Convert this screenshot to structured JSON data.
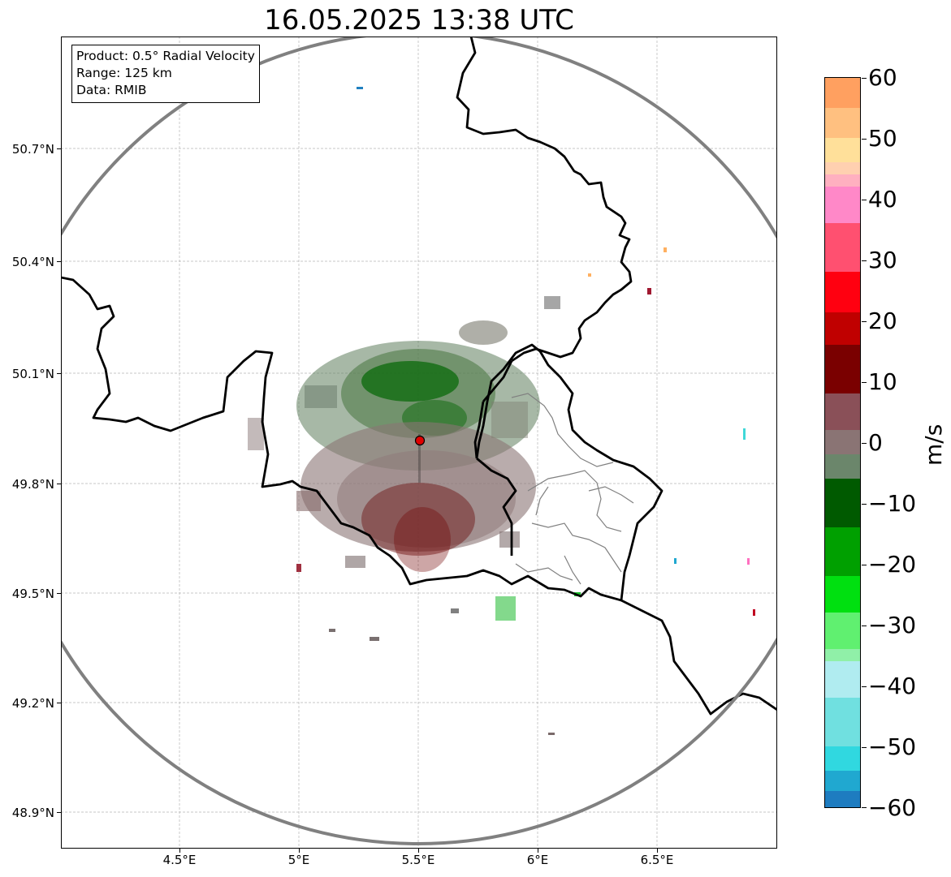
{
  "title": "16.05.2025 13:38 UTC",
  "info": {
    "product": "Product: 0.5° Radial Velocity",
    "range": "Range: 125 km",
    "source": "Data: RMIB"
  },
  "axes": {
    "lon_ticks": [
      {
        "value": 4.5,
        "label": "4.5°E"
      },
      {
        "value": 5.0,
        "label": "5°E"
      },
      {
        "value": 5.5,
        "label": "5.5°E"
      },
      {
        "value": 6.0,
        "label": "6°E"
      },
      {
        "value": 6.5,
        "label": "6.5°E"
      }
    ],
    "lat_ticks": [
      {
        "value": 50.7,
        "label": "50.7°N"
      },
      {
        "value": 50.4,
        "label": "50.4°N"
      },
      {
        "value": 50.1,
        "label": "50.1°N"
      },
      {
        "value": 49.8,
        "label": "49.8°N"
      },
      {
        "value": 49.5,
        "label": "49.5°N"
      },
      {
        "value": 49.2,
        "label": "49.2°N"
      },
      {
        "value": 48.9,
        "label": "48.9°N"
      }
    ],
    "lon_range": [
      4.0,
      7.0
    ],
    "lat_range": [
      48.8,
      51.0
    ]
  },
  "radar_site": {
    "lon": 5.505,
    "lat": 49.914,
    "marker_color": "#e00000"
  },
  "range_ring_km": 125,
  "colorbar": {
    "label": "m/s",
    "min": -60,
    "max": 60,
    "ticks": [
      "60",
      "50",
      "40",
      "30",
      "20",
      "10",
      "0",
      "−10",
      "−20",
      "−30",
      "−40",
      "−50",
      "−60"
    ],
    "colors": {
      "receding_strong": "#ffa060",
      "receding_light": "#ffe0a0",
      "receding_pink": "#ff88c8",
      "receding_red": "#ff0010",
      "receding_dark": "#6a0000",
      "near_zero_warm": "#8a7878",
      "near_zero_cool": "#608060",
      "approaching_dark": "#006000",
      "approaching_bright": "#00ff10",
      "approaching_light": "#90f0a0",
      "approaching_cyan": "#30dde0",
      "approaching_blue": "#2080c0"
    }
  },
  "map_style": {
    "country_border_color": "#000000",
    "province_border_color": "#808080",
    "range_ring_color": "#808080",
    "grid_color": "#b0b0b0"
  }
}
